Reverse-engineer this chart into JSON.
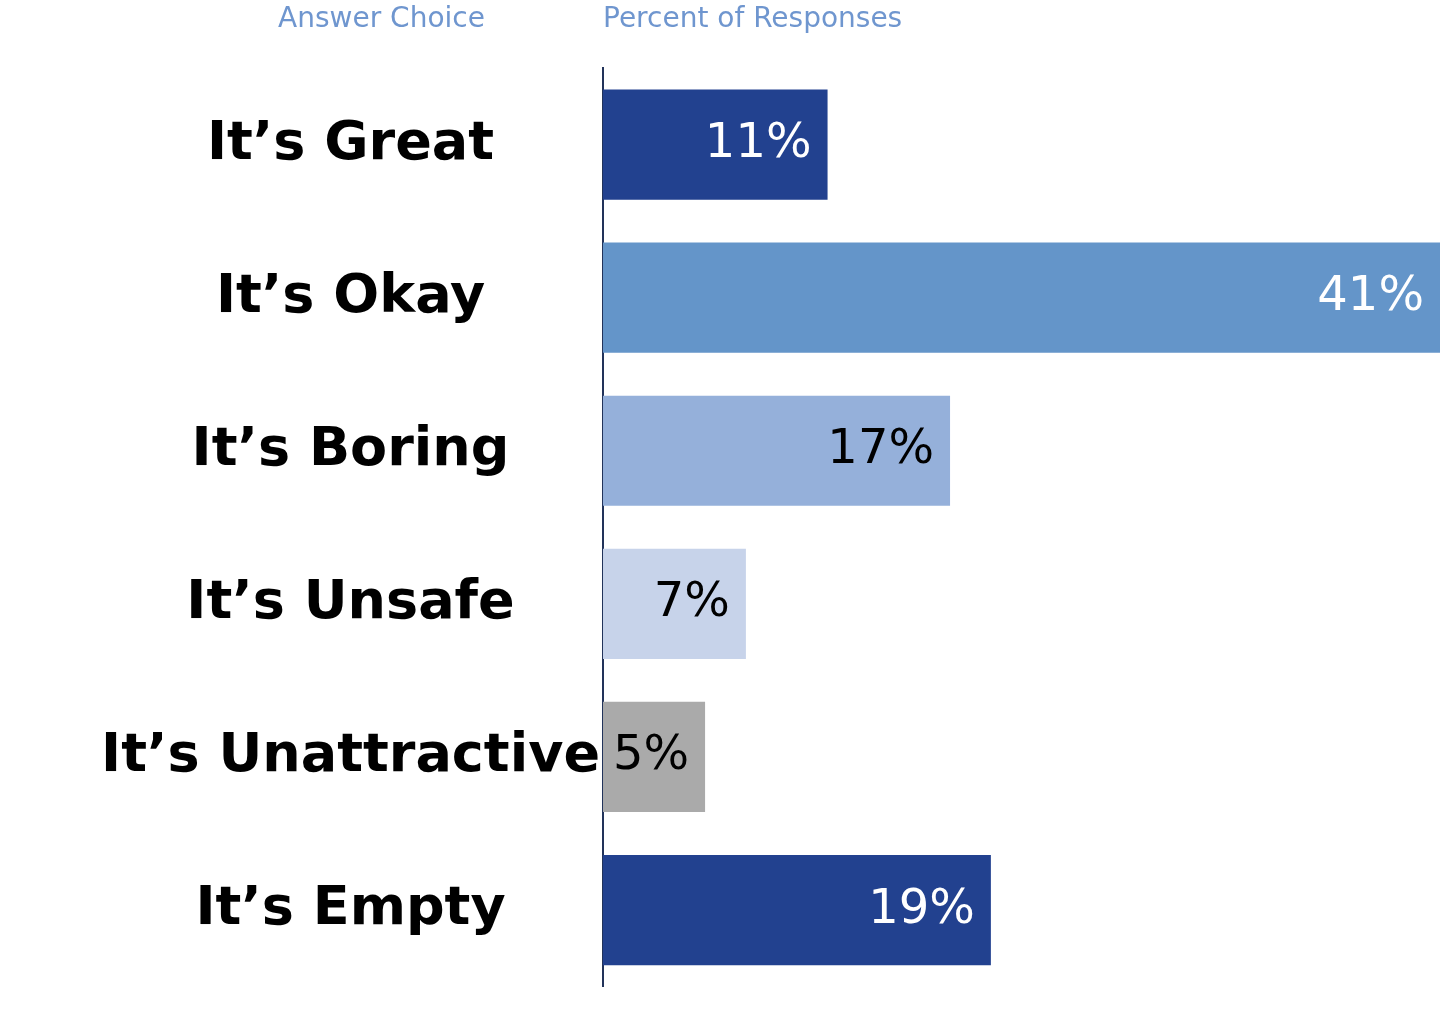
{
  "chart_data": {
    "type": "bar",
    "orientation": "horizontal",
    "xlabel": "Percent of Responses",
    "ylabel": "Answer Choice",
    "categories": [
      "It’s Great",
      "It’s Okay",
      "It’s Boring",
      "It’s Unsafe",
      "It’s Unattractive",
      "It’s Empty"
    ],
    "values": [
      11,
      41,
      17,
      7,
      5,
      19
    ],
    "colors": [
      "#22418f",
      "#6495c9",
      "#95b0da",
      "#c7d3ea",
      "#aaaaaa",
      "#22418f"
    ],
    "value_labels": [
      "11%",
      "41%",
      "17%",
      "7%",
      "5%",
      "19%"
    ],
    "grid": false,
    "legend": false
  }
}
